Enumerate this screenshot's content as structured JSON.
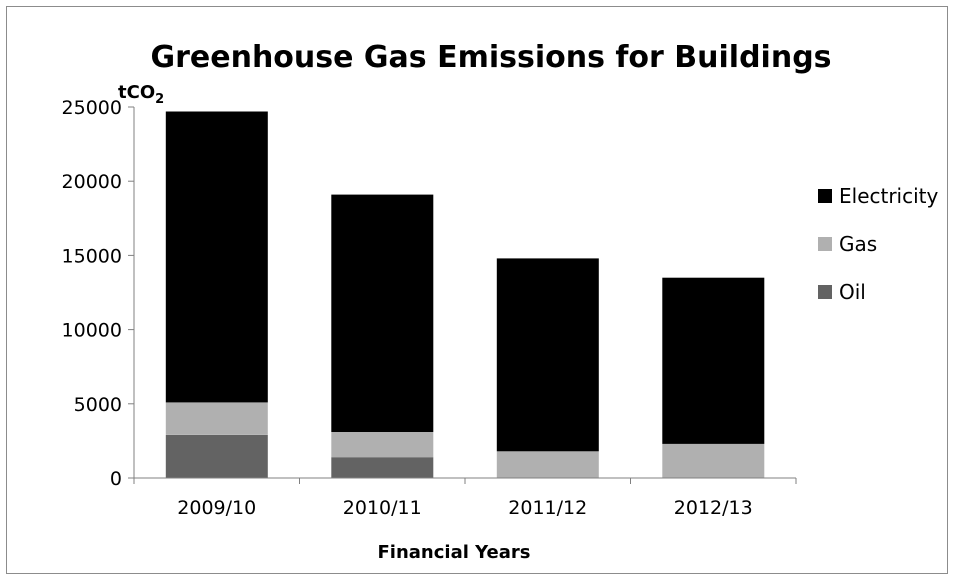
{
  "chart_data": {
    "type": "bar",
    "stacked": true,
    "title": "Greenhouse Gas Emissions for Buildings",
    "xlabel": "Financial Years",
    "ylabel": "tCO",
    "ylabel_subscript": "2",
    "categories": [
      "2009/10",
      "2010/11",
      "2011/12",
      "2012/13"
    ],
    "ylim": [
      0,
      25000
    ],
    "yticks": [
      0,
      5000,
      10000,
      15000,
      20000,
      25000
    ],
    "grid": false,
    "legend_position": "right",
    "series": [
      {
        "name": "Oil",
        "values": [
          2900,
          1400,
          0,
          0
        ],
        "color": "#636363"
      },
      {
        "name": "Gas",
        "values": [
          2200,
          1700,
          1800,
          2300
        ],
        "color": "#b0b0b0"
      },
      {
        "name": "Electricity",
        "values": [
          19600,
          16000,
          13000,
          11200
        ],
        "color": "#000000"
      }
    ],
    "legend_order": [
      "Electricity",
      "Gas",
      "Oil"
    ]
  }
}
